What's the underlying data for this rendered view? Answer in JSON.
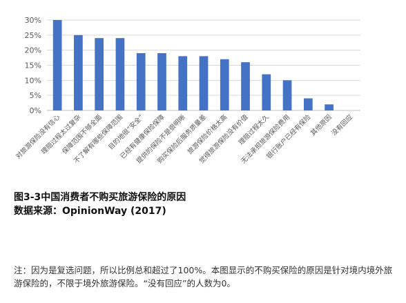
{
  "chart_data": {
    "type": "bar",
    "categories": [
      "对旅游保险没有信心",
      "理赔过程太过复杂",
      "保障范围不够全面",
      "不了解有哪些保障范围",
      "目的地很“安全”",
      "已经有健康保险保障",
      "提供的保险不是很明晰",
      "购买保险后服务质量差",
      "旅游保险价格太高",
      "觉得旅游保险没有价值",
      "理赔过程太久",
      "无法承担旅游保险费用",
      "银行账户已经有保险",
      "其他原因",
      "没有回应"
    ],
    "values": [
      30,
      25,
      24,
      24,
      19,
      19,
      18,
      18,
      17,
      16,
      12,
      10,
      4,
      2,
      0
    ],
    "ylim": [
      0,
      30
    ],
    "yticks": [
      "0%",
      "5%",
      "10%",
      "15%",
      "20%",
      "25%",
      "30%"
    ],
    "grid": true,
    "colors": {
      "bar": "#4472c4",
      "grid": "#d9d9d9",
      "axis": "#bfbfbf",
      "tick_text": "#595959"
    }
  },
  "caption": {
    "title": "图3-3中国消费者不购买旅游保险的原因",
    "source": "数据来源：OpinionWay (2017)"
  },
  "note": "注：因为是复选问题，所以比例总和超过了100%。本图显示的不购买保险的原因是针对境内境外旅游保险的，不限于境外旅游保险。“没有回应”的人数为0。"
}
